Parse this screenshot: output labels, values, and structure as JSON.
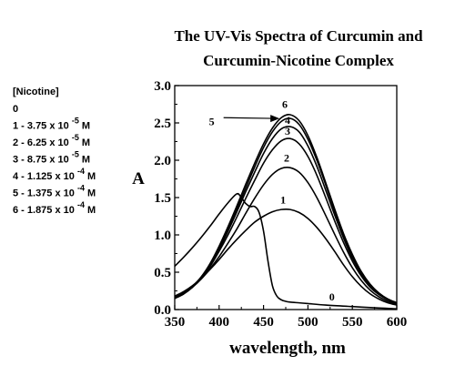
{
  "chart_data": {
    "type": "line",
    "title_lines": [
      "The UV-Vis Spectra of Curcumin and",
      "Curcumin-Nicotine Complex"
    ],
    "xlabel": "wavelength, nm",
    "ylabel": "A",
    "xlim": [
      350,
      600
    ],
    "ylim": [
      0.0,
      3.0
    ],
    "x_ticks": [
      350,
      400,
      450,
      500,
      550,
      600
    ],
    "x_tick_labels": [
      "350",
      "400",
      "450",
      "500",
      "550",
      "600"
    ],
    "y_ticks": [
      0.0,
      0.5,
      1.0,
      1.5,
      2.0,
      2.5,
      3.0
    ],
    "y_tick_labels": [
      "0.0",
      "0.5",
      "1.0",
      "1.5",
      "2.0",
      "2.5",
      "3.0"
    ],
    "legend": {
      "header": "[Nicotine]",
      "entries": [
        "0",
        "1 - 3.75 x 10 -5 M",
        "2 - 6.25 x 10 -5 M",
        "3 - 8.75 x 10 -5 M",
        "4 - 1.125 x 10 -4 M",
        "5 - 1.375 x 10 -4 M",
        "6 - 1.875 x 10 -4 M"
      ]
    },
    "series": [
      {
        "label": "0",
        "x": [
          350,
          360,
          370,
          380,
          390,
          400,
          410,
          420,
          425,
          430,
          435,
          440,
          445,
          450,
          455,
          460,
          465,
          470,
          475,
          480,
          490,
          500,
          520,
          550,
          580,
          600
        ],
        "y": [
          0.58,
          0.7,
          0.83,
          0.97,
          1.12,
          1.28,
          1.43,
          1.55,
          1.5,
          1.42,
          1.38,
          1.38,
          1.3,
          1.05,
          0.65,
          0.32,
          0.18,
          0.13,
          0.11,
          0.1,
          0.09,
          0.08,
          0.06,
          0.04,
          0.02,
          0.01
        ]
      },
      {
        "label": "1",
        "x": [
          350,
          360,
          370,
          380,
          390,
          400,
          410,
          420,
          430,
          440,
          450,
          460,
          470,
          480,
          490,
          500,
          510,
          520,
          530,
          540,
          550,
          560,
          570,
          580,
          590,
          600
        ],
        "y": [
          0.18,
          0.24,
          0.32,
          0.42,
          0.54,
          0.67,
          0.81,
          0.94,
          1.06,
          1.17,
          1.25,
          1.31,
          1.34,
          1.34,
          1.3,
          1.22,
          1.1,
          0.95,
          0.78,
          0.6,
          0.44,
          0.31,
          0.21,
          0.14,
          0.09,
          0.06
        ]
      },
      {
        "label": "2",
        "x": [
          350,
          360,
          370,
          380,
          390,
          400,
          410,
          420,
          430,
          440,
          450,
          460,
          470,
          480,
          490,
          500,
          510,
          520,
          530,
          540,
          550,
          560,
          570,
          580,
          590,
          600
        ],
        "y": [
          0.16,
          0.22,
          0.3,
          0.41,
          0.55,
          0.71,
          0.89,
          1.08,
          1.29,
          1.49,
          1.67,
          1.81,
          1.89,
          1.9,
          1.84,
          1.7,
          1.5,
          1.26,
          1.01,
          0.77,
          0.56,
          0.39,
          0.26,
          0.17,
          0.11,
          0.07
        ]
      },
      {
        "label": "3",
        "x": [
          350,
          360,
          370,
          380,
          390,
          400,
          410,
          420,
          430,
          440,
          450,
          460,
          470,
          480,
          490,
          500,
          510,
          520,
          530,
          540,
          550,
          560,
          570,
          580,
          590,
          600
        ],
        "y": [
          0.15,
          0.21,
          0.3,
          0.42,
          0.58,
          0.78,
          1.0,
          1.24,
          1.49,
          1.73,
          1.96,
          2.14,
          2.26,
          2.29,
          2.22,
          2.05,
          1.8,
          1.5,
          1.19,
          0.9,
          0.65,
          0.45,
          0.3,
          0.2,
          0.13,
          0.08
        ]
      },
      {
        "label": "4",
        "x": [
          350,
          360,
          370,
          380,
          390,
          400,
          410,
          420,
          430,
          440,
          450,
          460,
          470,
          480,
          490,
          500,
          510,
          520,
          530,
          540,
          550,
          560,
          570,
          580,
          590,
          600
        ],
        "y": [
          0.15,
          0.21,
          0.3,
          0.43,
          0.6,
          0.81,
          1.05,
          1.31,
          1.58,
          1.84,
          2.09,
          2.29,
          2.42,
          2.45,
          2.38,
          2.19,
          1.92,
          1.6,
          1.27,
          0.96,
          0.69,
          0.48,
          0.32,
          0.21,
          0.14,
          0.09
        ]
      },
      {
        "label": "5",
        "x": [
          350,
          360,
          370,
          380,
          390,
          400,
          410,
          420,
          430,
          440,
          450,
          460,
          470,
          480,
          490,
          500,
          510,
          520,
          530,
          540,
          550,
          560,
          570,
          580,
          590,
          600
        ],
        "y": [
          0.15,
          0.21,
          0.3,
          0.43,
          0.61,
          0.83,
          1.08,
          1.35,
          1.63,
          1.91,
          2.17,
          2.38,
          2.52,
          2.56,
          2.48,
          2.28,
          2.0,
          1.67,
          1.32,
          1.0,
          0.72,
          0.5,
          0.33,
          0.22,
          0.14,
          0.09
        ]
      },
      {
        "label": "6",
        "x": [
          350,
          360,
          370,
          380,
          390,
          400,
          410,
          420,
          430,
          440,
          450,
          460,
          470,
          480,
          490,
          500,
          510,
          520,
          530,
          540,
          550,
          560,
          570,
          580,
          590,
          600
        ],
        "y": [
          0.15,
          0.21,
          0.31,
          0.44,
          0.62,
          0.85,
          1.11,
          1.39,
          1.68,
          1.96,
          2.22,
          2.43,
          2.57,
          2.61,
          2.53,
          2.33,
          2.04,
          1.7,
          1.35,
          1.02,
          0.74,
          0.51,
          0.34,
          0.22,
          0.14,
          0.09
        ]
      }
    ],
    "curve_labels": [
      {
        "text": "0",
        "x": 527,
        "y": 0.12
      },
      {
        "text": "1",
        "x": 472,
        "y": 1.42
      },
      {
        "text": "2",
        "x": 476,
        "y": 1.98
      },
      {
        "text": "3",
        "x": 477,
        "y": 2.34
      },
      {
        "text": "4",
        "x": 477,
        "y": 2.49
      },
      {
        "text": "6",
        "x": 474,
        "y": 2.7
      }
    ],
    "annotation": {
      "text": "5",
      "arrow_from": [
        405,
        2.57
      ],
      "arrow_to": [
        468,
        2.56
      ]
    }
  }
}
